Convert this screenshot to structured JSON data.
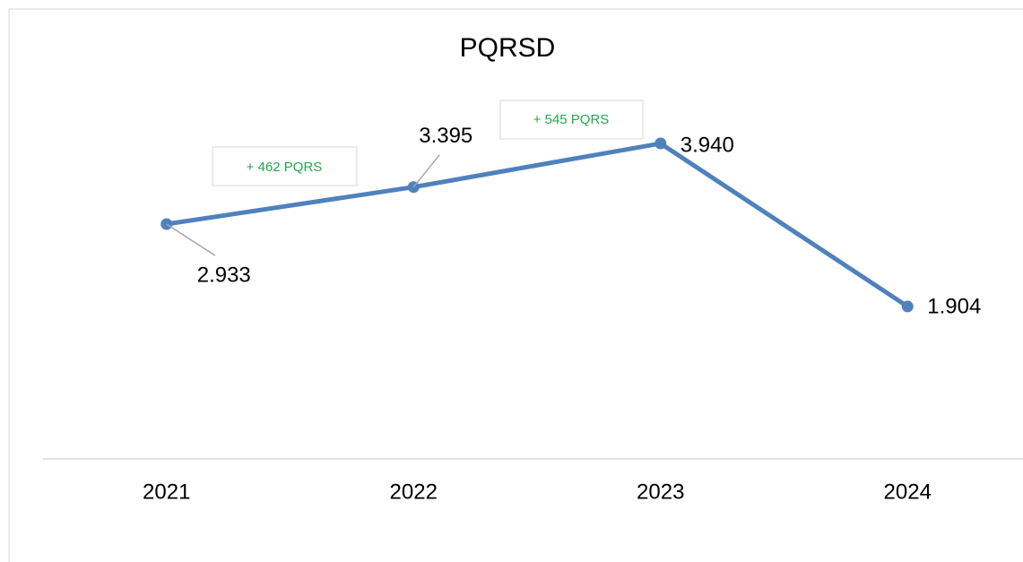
{
  "chart_data": {
    "type": "line",
    "title": "PQRSD",
    "categories": [
      "2021",
      "2022",
      "2023",
      "2024"
    ],
    "series": [
      {
        "name": "PQRSD",
        "color": "#4f81bd",
        "values": [
          2933,
          3395,
          3940,
          1904
        ],
        "value_labels": [
          "2.933",
          "3.395",
          "3.940",
          "1.904"
        ]
      }
    ],
    "ylim": [
      0,
      4500
    ],
    "annotations": [
      "+ 462 PQRS",
      "+ 545 PQRS"
    ]
  }
}
